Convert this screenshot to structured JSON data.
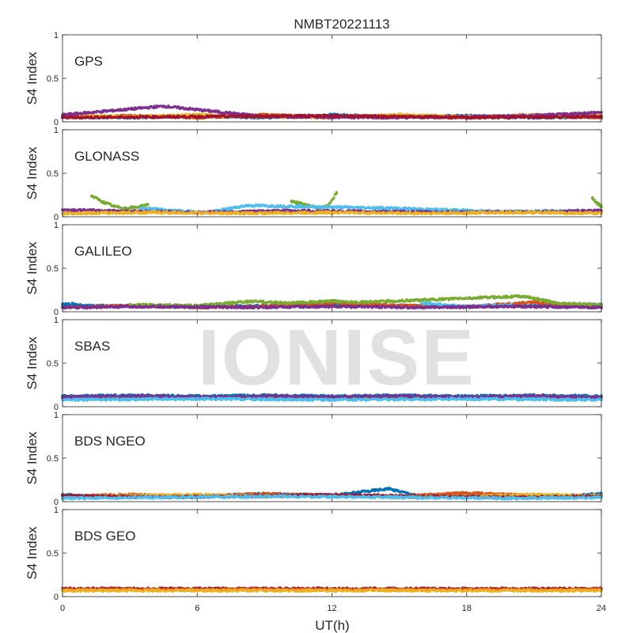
{
  "chart_data": {
    "type": "scatter",
    "title": "NMBT20221113",
    "xlabel": "UT(h)",
    "ylabel": "S4 Index",
    "xlim": [
      0,
      24
    ],
    "ylim": [
      0,
      1
    ],
    "xticks": [
      "0",
      "6",
      "12",
      "18",
      "24"
    ],
    "yticks": [
      "0",
      "0.5",
      "1"
    ],
    "grid": false,
    "watermark": "IONISE",
    "series_colors": [
      "#0072BD",
      "#D95319",
      "#EDB120",
      "#7E2F8E",
      "#77AC30",
      "#4DBEEE",
      "#A2142F"
    ],
    "panels": [
      {
        "name": "GPS",
        "baseline": 0.06,
        "series": [
          {
            "color": "#0072BD",
            "x": [
              0,
              3,
              6,
              9,
              12,
              15,
              18,
              21,
              24
            ],
            "y": [
              0.06,
              0.05,
              0.07,
              0.05,
              0.08,
              0.06,
              0.07,
              0.05,
              0.06
            ]
          },
          {
            "color": "#D95319",
            "x": [
              0,
              3,
              6,
              9,
              12,
              15,
              18,
              21,
              24
            ],
            "y": [
              0.05,
              0.07,
              0.05,
              0.08,
              0.06,
              0.07,
              0.05,
              0.08,
              0.05
            ]
          },
          {
            "color": "#EDB120",
            "x": [
              0,
              3,
              6,
              9,
              12,
              15,
              18,
              21,
              24
            ],
            "y": [
              0.07,
              0.06,
              0.08,
              0.06,
              0.05,
              0.08,
              0.06,
              0.07,
              0.07
            ]
          },
          {
            "color": "#7E2F8E",
            "x": [
              0,
              4.5,
              9,
              15,
              21,
              24
            ],
            "y": [
              0.08,
              0.18,
              0.06,
              0.05,
              0.07,
              0.11
            ]
          },
          {
            "color": "#A2142F",
            "x": [
              0,
              6,
              12,
              18,
              24
            ],
            "y": [
              0.05,
              0.06,
              0.07,
              0.05,
              0.06
            ]
          }
        ]
      },
      {
        "name": "GLONASS",
        "baseline": 0.06,
        "series": [
          {
            "color": "#77AC30",
            "x": [
              1.3,
              1.8,
              2.3,
              2.8,
              3.3,
              3.8
            ],
            "y": [
              0.24,
              0.17,
              0.12,
              0.1,
              0.11,
              0.14
            ]
          },
          {
            "color": "#77AC30",
            "x": [
              10.2,
              10.8,
              11.4,
              11.8,
              12.2
            ],
            "y": [
              0.18,
              0.14,
              0.1,
              0.12,
              0.27
            ]
          },
          {
            "color": "#4DBEEE",
            "x": [
              3.5,
              5,
              6.5,
              8.2,
              14.5,
              17,
              20,
              23
            ],
            "y": [
              0.1,
              0.07,
              0.05,
              0.13,
              0.1,
              0.08,
              0.06,
              0.07
            ]
          },
          {
            "color": "#7E2F8E",
            "x": [
              0,
              2,
              4,
              6,
              8,
              10,
              14,
              18,
              22,
              24
            ],
            "y": [
              0.08,
              0.07,
              0.06,
              0.05,
              0.06,
              0.07,
              0.06,
              0.05,
              0.06,
              0.07
            ]
          },
          {
            "color": "#EDB120",
            "x": [
              0,
              4,
              8,
              12,
              16,
              20,
              24
            ],
            "y": [
              0.04,
              0.05,
              0.04,
              0.05,
              0.04,
              0.05,
              0.04
            ]
          },
          {
            "color": "#77AC30",
            "x": [
              23.6,
              23.8,
              24
            ],
            "y": [
              0.22,
              0.16,
              0.12
            ]
          }
        ]
      },
      {
        "name": "GALILEO",
        "baseline": 0.06,
        "series": [
          {
            "color": "#0072BD",
            "x": [
              0,
              0.5,
              1,
              6,
              9,
              12,
              15,
              18,
              21,
              24
            ],
            "y": [
              0.08,
              0.09,
              0.07,
              0.06,
              0.07,
              0.08,
              0.07,
              0.06,
              0.07,
              0.08
            ]
          },
          {
            "color": "#D95319",
            "x": [
              0,
              3,
              6,
              9,
              12,
              15,
              18,
              21,
              24
            ],
            "y": [
              0.05,
              0.07,
              0.05,
              0.06,
              0.1,
              0.07,
              0.06,
              0.11,
              0.06
            ]
          },
          {
            "color": "#77AC30",
            "x": [
              3,
              6,
              8.5,
              10,
              12,
              13.5,
              20.5,
              22,
              24
            ],
            "y": [
              0.08,
              0.07,
              0.12,
              0.1,
              0.12,
              0.11,
              0.18,
              0.1,
              0.08
            ]
          },
          {
            "color": "#4DBEEE",
            "x": [
              16,
              18,
              20
            ],
            "y": [
              0.1,
              0.06,
              0.08
            ]
          },
          {
            "color": "#7E2F8E",
            "x": [
              0,
              4,
              8,
              12,
              16,
              20,
              24
            ],
            "y": [
              0.05,
              0.06,
              0.05,
              0.06,
              0.05,
              0.06,
              0.05
            ]
          }
        ]
      },
      {
        "name": "SBAS",
        "baseline": 0.11,
        "series": [
          {
            "color": "#0072BD",
            "x": [
              0,
              3,
              6,
              9,
              12,
              15,
              18,
              21,
              24
            ],
            "y": [
              0.12,
              0.13,
              0.12,
              0.13,
              0.12,
              0.13,
              0.12,
              0.13,
              0.12
            ]
          },
          {
            "color": "#77AC30",
            "x": [
              0,
              3,
              6,
              9,
              12,
              15,
              18,
              21,
              24
            ],
            "y": [
              0.1,
              0.11,
              0.1,
              0.11,
              0.1,
              0.11,
              0.1,
              0.11,
              0.1
            ]
          },
          {
            "color": "#7E2F8E",
            "x": [
              0,
              3,
              6,
              9,
              12,
              15,
              18,
              21,
              24
            ],
            "y": [
              0.11,
              0.12,
              0.11,
              0.12,
              0.11,
              0.12,
              0.11,
              0.12,
              0.11
            ]
          },
          {
            "color": "#4DBEEE",
            "x": [
              0,
              6,
              12,
              18,
              24
            ],
            "y": [
              0.08,
              0.09,
              0.08,
              0.09,
              0.08
            ]
          }
        ]
      },
      {
        "name": "BDS NGEO",
        "baseline": 0.06,
        "series": [
          {
            "color": "#0072BD",
            "x": [
              0,
              2,
              4,
              6,
              9,
              12,
              14.5,
              16,
              18,
              20,
              22,
              24
            ],
            "y": [
              0.08,
              0.05,
              0.07,
              0.06,
              0.09,
              0.07,
              0.15,
              0.06,
              0.07,
              0.05,
              0.06,
              0.09
            ]
          },
          {
            "color": "#D95319",
            "x": [
              0,
              3,
              6,
              9,
              12,
              15,
              18,
              21,
              24
            ],
            "y": [
              0.06,
              0.08,
              0.06,
              0.09,
              0.07,
              0.06,
              0.1,
              0.07,
              0.06
            ]
          },
          {
            "color": "#EDB120",
            "x": [
              0,
              3,
              6,
              9,
              12,
              15,
              18,
              21,
              24
            ],
            "y": [
              0.05,
              0.07,
              0.08,
              0.06,
              0.07,
              0.05,
              0.06,
              0.08,
              0.07
            ]
          },
          {
            "color": "#A2142F",
            "x": [
              0,
              4,
              8,
              12,
              16,
              20,
              24
            ],
            "y": [
              0.07,
              0.05,
              0.06,
              0.08,
              0.06,
              0.05,
              0.06
            ]
          },
          {
            "color": "#4DBEEE",
            "x": [
              0,
              5,
              10,
              15,
              20,
              24
            ],
            "y": [
              0.04,
              0.05,
              0.06,
              0.05,
              0.04,
              0.05
            ]
          }
        ]
      },
      {
        "name": "BDS GEO",
        "baseline": 0.08,
        "series": [
          {
            "color": "#A2142F",
            "x": [
              0,
              6,
              12,
              18,
              24
            ],
            "y": [
              0.09,
              0.09,
              0.09,
              0.09,
              0.09
            ]
          },
          {
            "color": "#D95319",
            "x": [
              0,
              6,
              12,
              18,
              24
            ],
            "y": [
              0.08,
              0.08,
              0.08,
              0.08,
              0.08
            ]
          },
          {
            "color": "#EDB120",
            "x": [
              0,
              6,
              12,
              18,
              24
            ],
            "y": [
              0.07,
              0.07,
              0.07,
              0.07,
              0.07
            ]
          }
        ]
      }
    ]
  }
}
